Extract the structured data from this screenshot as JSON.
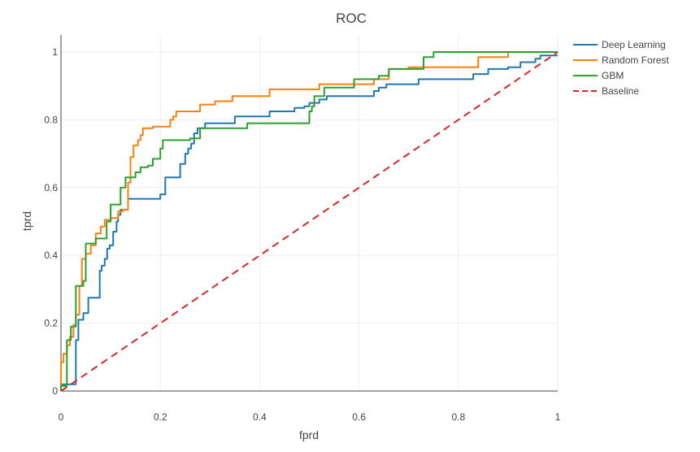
{
  "chart_data": {
    "type": "line",
    "title": "ROC",
    "xlabel": "fprd",
    "ylabel": "tprd",
    "xlim": [
      0,
      1
    ],
    "ylim": [
      0,
      1
    ],
    "x_ticks": [
      "0",
      "0.2",
      "0.4",
      "0.6",
      "0.8",
      "1"
    ],
    "y_ticks": [
      "0",
      "0.2",
      "0.4",
      "0.6",
      "0.8",
      "1"
    ],
    "grid": true,
    "legend_position": "top-right",
    "series": [
      {
        "name": "Deep Learning",
        "color": "#1f77b4",
        "dash": "solid",
        "x": [
          0,
          0.03,
          0.03,
          0.035,
          0.035,
          0.045,
          0.045,
          0.055,
          0.055,
          0.078,
          0.078,
          0.082,
          0.082,
          0.088,
          0.088,
          0.093,
          0.093,
          0.098,
          0.098,
          0.105,
          0.105,
          0.112,
          0.112,
          0.115,
          0.115,
          0.12,
          0.12,
          0.135,
          0.135,
          0.155,
          0.155,
          0.2,
          0.2,
          0.21,
          0.21,
          0.24,
          0.24,
          0.25,
          0.25,
          0.256,
          0.256,
          0.262,
          0.262,
          0.268,
          0.268,
          0.275,
          0.275,
          0.29,
          0.29,
          0.35,
          0.35,
          0.37,
          0.37,
          0.38,
          0.38,
          0.42,
          0.42,
          0.43,
          0.43,
          0.47,
          0.47,
          0.49,
          0.49,
          0.5,
          0.5,
          0.52,
          0.52,
          0.535,
          0.535,
          0.55,
          0.55,
          0.63,
          0.63,
          0.64,
          0.64,
          0.655,
          0.655,
          0.7,
          0.7,
          0.72,
          0.72,
          0.83,
          0.83,
          0.86,
          0.86,
          0.9,
          0.9,
          0.925,
          0.925,
          0.955,
          0.955,
          0.965,
          0.965,
          1.0
        ],
        "y": [
          0.02,
          0.02,
          0.15,
          0.15,
          0.21,
          0.21,
          0.23,
          0.23,
          0.275,
          0.275,
          0.355,
          0.355,
          0.37,
          0.37,
          0.39,
          0.39,
          0.42,
          0.42,
          0.43,
          0.43,
          0.47,
          0.47,
          0.5,
          0.5,
          0.52,
          0.52,
          0.535,
          0.535,
          0.567,
          0.567,
          0.567,
          0.567,
          0.58,
          0.58,
          0.63,
          0.63,
          0.67,
          0.67,
          0.7,
          0.7,
          0.715,
          0.715,
          0.73,
          0.73,
          0.76,
          0.76,
          0.775,
          0.775,
          0.79,
          0.79,
          0.81,
          0.81,
          0.81,
          0.81,
          0.81,
          0.81,
          0.825,
          0.825,
          0.825,
          0.825,
          0.835,
          0.835,
          0.84,
          0.84,
          0.85,
          0.85,
          0.86,
          0.86,
          0.87,
          0.87,
          0.87,
          0.87,
          0.885,
          0.885,
          0.895,
          0.895,
          0.905,
          0.905,
          0.905,
          0.905,
          0.92,
          0.92,
          0.935,
          0.935,
          0.95,
          0.95,
          0.955,
          0.955,
          0.97,
          0.97,
          0.98,
          0.98,
          0.99,
          0.99
        ]
      },
      {
        "name": "Random Forest",
        "color": "#ff7f0e",
        "dash": "solid",
        "x": [
          0,
          0,
          0.005,
          0.005,
          0.012,
          0.012,
          0.018,
          0.018,
          0.025,
          0.025,
          0.03,
          0.03,
          0.037,
          0.037,
          0.042,
          0.042,
          0.05,
          0.05,
          0.06,
          0.06,
          0.07,
          0.07,
          0.08,
          0.08,
          0.088,
          0.088,
          0.1,
          0.1,
          0.115,
          0.115,
          0.125,
          0.125,
          0.135,
          0.135,
          0.14,
          0.14,
          0.146,
          0.146,
          0.155,
          0.155,
          0.16,
          0.16,
          0.165,
          0.165,
          0.172,
          0.172,
          0.185,
          0.185,
          0.22,
          0.22,
          0.226,
          0.226,
          0.232,
          0.232,
          0.28,
          0.28,
          0.31,
          0.31,
          0.345,
          0.345,
          0.42,
          0.42,
          0.45,
          0.45,
          0.52,
          0.52,
          0.56,
          0.56,
          0.63,
          0.63,
          0.66,
          0.66,
          0.7,
          0.7,
          0.84,
          0.84,
          0.9,
          0.9,
          1.0
        ],
        "y": [
          0,
          0.085,
          0.085,
          0.11,
          0.11,
          0.135,
          0.135,
          0.16,
          0.16,
          0.195,
          0.195,
          0.225,
          0.225,
          0.31,
          0.31,
          0.39,
          0.39,
          0.405,
          0.405,
          0.43,
          0.43,
          0.465,
          0.465,
          0.485,
          0.485,
          0.505,
          0.505,
          0.51,
          0.51,
          0.53,
          0.53,
          0.535,
          0.535,
          0.615,
          0.615,
          0.69,
          0.69,
          0.725,
          0.725,
          0.74,
          0.74,
          0.755,
          0.755,
          0.775,
          0.775,
          0.775,
          0.775,
          0.78,
          0.78,
          0.8,
          0.8,
          0.81,
          0.81,
          0.825,
          0.825,
          0.845,
          0.845,
          0.855,
          0.855,
          0.87,
          0.87,
          0.89,
          0.89,
          0.89,
          0.89,
          0.905,
          0.905,
          0.905,
          0.905,
          0.92,
          0.92,
          0.95,
          0.95,
          0.955,
          0.955,
          0.985,
          0.985,
          1.0,
          1.0
        ]
      },
      {
        "name": "GBM",
        "color": "#2ca02c",
        "dash": "solid",
        "x": [
          0,
          0,
          0.012,
          0.012,
          0.02,
          0.02,
          0.03,
          0.03,
          0.045,
          0.045,
          0.05,
          0.05,
          0.07,
          0.07,
          0.085,
          0.085,
          0.092,
          0.092,
          0.1,
          0.1,
          0.12,
          0.12,
          0.13,
          0.13,
          0.14,
          0.14,
          0.15,
          0.15,
          0.16,
          0.16,
          0.175,
          0.175,
          0.185,
          0.185,
          0.2,
          0.2,
          0.205,
          0.205,
          0.26,
          0.26,
          0.28,
          0.28,
          0.375,
          0.375,
          0.5,
          0.5,
          0.505,
          0.505,
          0.51,
          0.51,
          0.53,
          0.53,
          0.59,
          0.59,
          0.64,
          0.64,
          0.66,
          0.66,
          0.73,
          0.73,
          0.75,
          0.75,
          1.0
        ],
        "y": [
          0,
          0.015,
          0.015,
          0.15,
          0.15,
          0.19,
          0.19,
          0.31,
          0.31,
          0.325,
          0.325,
          0.435,
          0.435,
          0.45,
          0.45,
          0.45,
          0.45,
          0.5,
          0.5,
          0.55,
          0.55,
          0.6,
          0.6,
          0.63,
          0.63,
          0.63,
          0.63,
          0.645,
          0.645,
          0.66,
          0.66,
          0.665,
          0.665,
          0.685,
          0.685,
          0.715,
          0.715,
          0.74,
          0.74,
          0.745,
          0.745,
          0.775,
          0.775,
          0.79,
          0.79,
          0.825,
          0.825,
          0.84,
          0.84,
          0.87,
          0.87,
          0.895,
          0.895,
          0.92,
          0.92,
          0.93,
          0.93,
          0.95,
          0.95,
          0.985,
          0.985,
          1.0,
          1.0
        ]
      },
      {
        "name": "Baseline",
        "color": "#d62728",
        "dash": "dash",
        "x": [
          0,
          1
        ],
        "y": [
          0,
          1
        ]
      }
    ]
  }
}
